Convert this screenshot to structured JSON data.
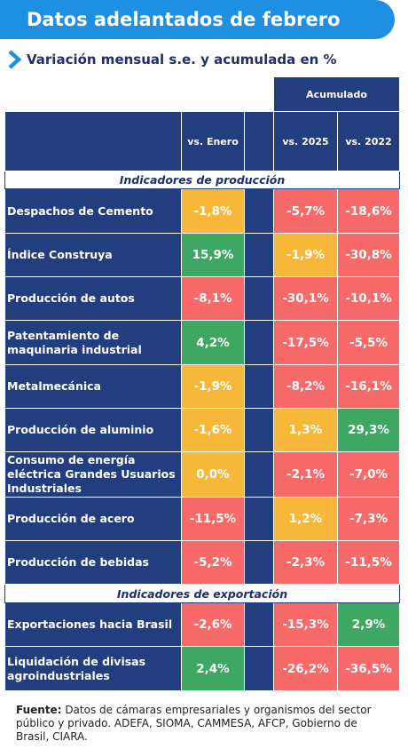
{
  "title": "Datos adelantados de febrero",
  "subtitle": "Variación mensual s.e. y acumulada en %",
  "headers": {
    "acumulado": "Acumulado",
    "vs_enero": "vs. Enero",
    "vs_2025": "vs. 2025",
    "vs_2022": "vs. 2022"
  },
  "sections": {
    "produccion": "Indicadores de producción",
    "exportacion": "Indicadores de exportación"
  },
  "rows": [
    {
      "label": "Despachos de Cemento",
      "enero": "-1,8%",
      "v2025": "-5,7%",
      "v2022": "-18,6%"
    },
    {
      "label": "Índice Construya",
      "enero": "15,9%",
      "v2025": "-1,9%",
      "v2022": "-30,8%"
    },
    {
      "label": "Producción de autos",
      "enero": "-8,1%",
      "v2025": "-30,1%",
      "v2022": "-10,1%"
    },
    {
      "label": "Patentamiento de maquinaria industrial",
      "enero": "4,2%",
      "v2025": "-17,5%",
      "v2022": "-5,5%"
    },
    {
      "label": "Metalmecánica",
      "enero": "-1,9%",
      "v2025": "-8,2%",
      "v2022": "-16,1%"
    },
    {
      "label": "Producción de aluminio",
      "enero": "-1,6%",
      "v2025": "1,3%",
      "v2022": "29,3%"
    },
    {
      "label": "Consumo de energía eléctrica Grandes Usuarios Industriales",
      "enero": "0,0%",
      "v2025": "-2,1%",
      "v2022": "-7,0%"
    },
    {
      "label": "Producción de acero",
      "enero": "-11,5%",
      "v2025": "1,2%",
      "v2022": "-7,3%"
    },
    {
      "label": "Producción de bebidas",
      "enero": "-5,2%",
      "v2025": "-2,3%",
      "v2022": "-11,5%"
    },
    {
      "label": "Exportaciones hacia Brasil",
      "enero": "-2,6%",
      "v2025": "-15,3%",
      "v2022": "2,9%"
    },
    {
      "label": "Liquidación de divisas agroindustriales",
      "enero": "2,4%",
      "v2025": "-26,2%",
      "v2022": "-36,5%"
    }
  ],
  "colors": {
    "red": "#f86a6a",
    "yellow": "#f7b83a",
    "green": "#3ea862",
    "navy": "#233e7e",
    "banner": "#1e8fe1"
  },
  "cell_status": [
    [
      "yellow",
      "red",
      "red"
    ],
    [
      "green",
      "yellow",
      "red"
    ],
    [
      "red",
      "red",
      "red"
    ],
    [
      "green",
      "red",
      "red"
    ],
    [
      "yellow",
      "red",
      "red"
    ],
    [
      "yellow",
      "yellow",
      "green"
    ],
    [
      "yellow",
      "red",
      "red"
    ],
    [
      "red",
      "yellow",
      "red"
    ],
    [
      "red",
      "red",
      "red"
    ],
    [
      "red",
      "red",
      "green"
    ],
    [
      "green",
      "red",
      "red"
    ]
  ],
  "footer": {
    "label": "Fuente:",
    "text": " Datos de cámaras empresariales y organismos del sector público y privado. ADEFA, SIOMA, CAMMESA, AFCP, Gobierno de Brasil, CIARA."
  }
}
